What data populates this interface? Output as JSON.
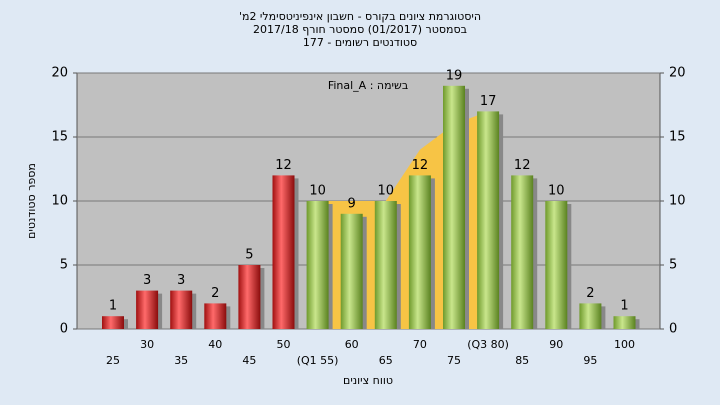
{
  "chart_data": {
    "type": "bar",
    "title": "היסטוגרמת ציונים בקורס - חשבון אינפיניטסימלי 2מ'",
    "subtitle": "בסמסטר  (01/2017)  סמסטר חורף 2017/18",
    "subtitle2": "סטודנטים רשומים - 177",
    "annotation": "בשימה : Final_A",
    "y_label": "מספר סטודנטים",
    "x_label": "טווח ציונים",
    "categories": [
      "25",
      "30",
      "35",
      "40",
      "45",
      "50",
      "(Q1 55)",
      "60",
      "65",
      "70",
      "75",
      "(Q3 80)",
      "85",
      "90",
      "95",
      "100"
    ],
    "values": [
      1,
      3,
      3,
      2,
      5,
      12,
      10,
      9,
      10,
      12,
      19,
      17,
      12,
      10,
      2,
      1
    ],
    "colors": [
      "red",
      "red",
      "red",
      "red",
      "red",
      "red",
      "green",
      "green",
      "green",
      "green",
      "green",
      "green",
      "green",
      "green",
      "green",
      "green"
    ],
    "area": {
      "color": "#f7c445",
      "values": [
        null,
        null,
        null,
        null,
        null,
        null,
        10,
        10,
        10,
        14,
        16,
        17,
        null,
        null,
        null,
        null
      ]
    },
    "ylim": [
      0,
      20
    ],
    "yticks": [
      0,
      5,
      10,
      15,
      20
    ],
    "grid": true
  }
}
